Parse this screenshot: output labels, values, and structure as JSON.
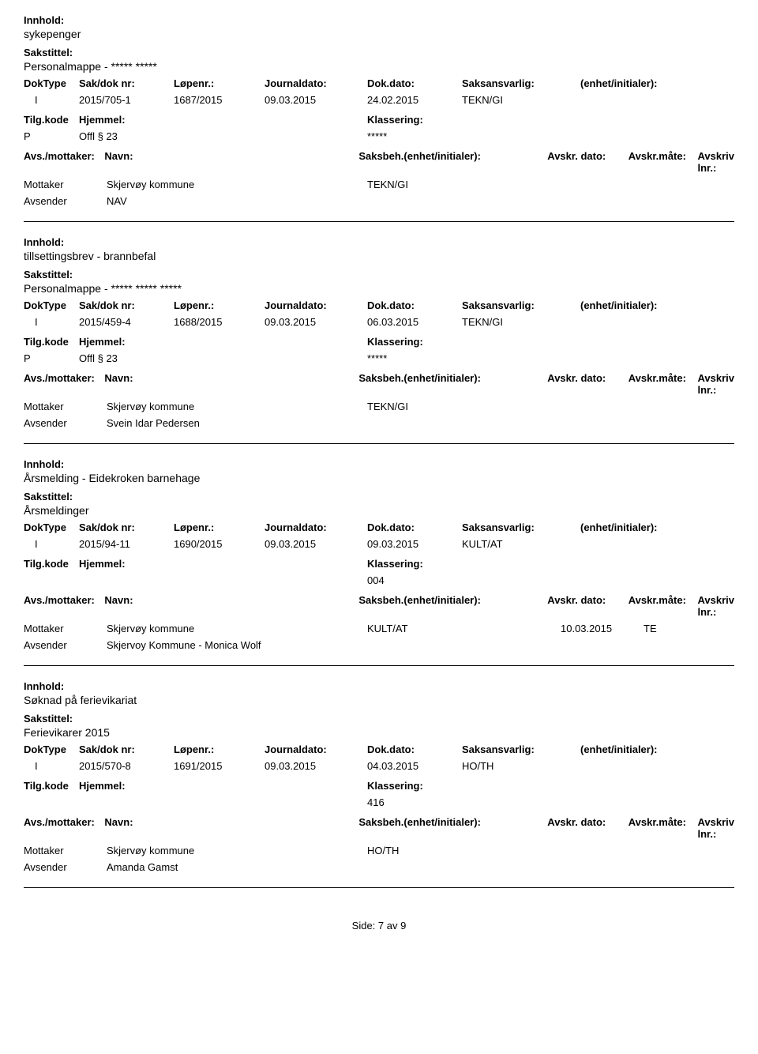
{
  "labels": {
    "innhold": "Innhold:",
    "sakstittel": "Sakstittel:",
    "doktype": "DokType",
    "sakdoknr": "Sak/dok nr:",
    "lopenr": "Løpenr.:",
    "journaldato": "Journaldato:",
    "dokdato": "Dok.dato:",
    "saksansvarlig": "Saksansvarlig:",
    "enhet": "(enhet/initialer):",
    "tilgkode": "Tilg.kode",
    "hjemmel": "Hjemmel:",
    "klassering": "Klassering:",
    "avsmottaker": "Avs./mottaker:",
    "navn": "Navn:",
    "saksbeh": "Saksbeh.(enhet/initialer):",
    "avskrdato": "Avskr. dato:",
    "avskrmate": "Avskr.måte:",
    "avskrivlnr": "Avskriv lnr.:",
    "avsender": "Avsender",
    "mottaker": "Mottaker"
  },
  "entries": [
    {
      "innhold": "sykepenger",
      "sakstittel": "Personalmappe - ***** *****",
      "doktype": "I",
      "sakdoknr": "2015/705-1",
      "lopenr": "1687/2015",
      "jdato": "09.03.2015",
      "ddato": "24.02.2015",
      "saksansvarlig": "TEKN/GI",
      "enhet": "",
      "tilgkode": "P",
      "hjemmel": "Offl § 23",
      "klassering": "*****",
      "mottaker_navn": "Skjervøy kommune",
      "saksbeh": "TEKN/GI",
      "avskrdato": "",
      "avskrmate": "",
      "avsender_navn": "NAV"
    },
    {
      "innhold": "tillsettingsbrev - brannbefal",
      "sakstittel": "Personalmappe -  ***** ***** *****",
      "doktype": "I",
      "sakdoknr": "2015/459-4",
      "lopenr": "1688/2015",
      "jdato": "09.03.2015",
      "ddato": "06.03.2015",
      "saksansvarlig": "TEKN/GI",
      "enhet": "",
      "tilgkode": "P",
      "hjemmel": "Offl § 23",
      "klassering": "*****",
      "mottaker_navn": "Skjervøy kommune",
      "saksbeh": "TEKN/GI",
      "avskrdato": "",
      "avskrmate": "",
      "avsender_navn": "Svein Idar Pedersen"
    },
    {
      "innhold": "Årsmelding - Eidekroken barnehage",
      "sakstittel": "Årsmeldinger",
      "doktype": "I",
      "sakdoknr": "2015/94-11",
      "lopenr": "1690/2015",
      "jdato": "09.03.2015",
      "ddato": "09.03.2015",
      "saksansvarlig": "KULT/AT",
      "enhet": "",
      "tilgkode": "",
      "hjemmel": "",
      "klassering": "004",
      "mottaker_navn": "Skjervøy kommune",
      "saksbeh": "KULT/AT",
      "avskrdato": "10.03.2015",
      "avskrmate": "TE",
      "avsender_navn": "Skjervoy Kommune - Monica Wolf"
    },
    {
      "innhold": "Søknad på ferievikariat",
      "sakstittel": "Ferievikarer 2015",
      "doktype": "I",
      "sakdoknr": "2015/570-8",
      "lopenr": "1691/2015",
      "jdato": "09.03.2015",
      "ddato": "04.03.2015",
      "saksansvarlig": "HO/TH",
      "enhet": "",
      "tilgkode": "",
      "hjemmel": "",
      "klassering": "416",
      "mottaker_navn": "Skjervøy kommune",
      "saksbeh": "HO/TH",
      "avskrdato": "",
      "avskrmate": "",
      "avsender_navn": "Amanda Gamst"
    }
  ],
  "footer": "Side: 7 av 9"
}
